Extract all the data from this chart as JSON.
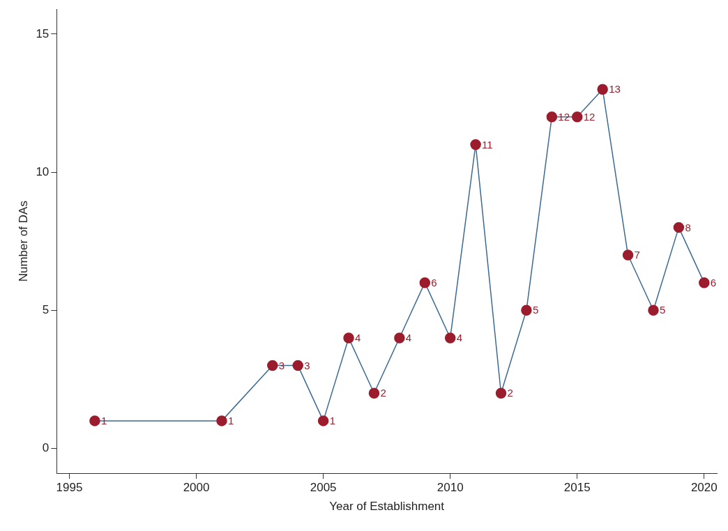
{
  "chart_data": {
    "type": "line",
    "xlabel": "Year of Establishment",
    "ylabel": "Number of DAs",
    "x": [
      1996,
      2001,
      2003,
      2004,
      2005,
      2006,
      2007,
      2008,
      2009,
      2010,
      2011,
      2012,
      2013,
      2014,
      2015,
      2016,
      2017,
      2018,
      2019,
      2020
    ],
    "series": [
      {
        "color": "#9b1c2c",
        "values": [
          1,
          1,
          3,
          3,
          1,
          4,
          2,
          4,
          6,
          4,
          11,
          2,
          5,
          12,
          12,
          13,
          7,
          5,
          8,
          6
        ]
      }
    ],
    "xlim": [
      1994.5,
      2020.5
    ],
    "xticks": [
      1995,
      2000,
      2005,
      2010,
      2015,
      2020
    ],
    "ylim": [
      -0.9,
      15.9
    ],
    "yticks": [
      0,
      5,
      10,
      15
    ],
    "grid": false,
    "legend": false,
    "marker": "circle",
    "line_style": "solid",
    "data_labels": true
  }
}
